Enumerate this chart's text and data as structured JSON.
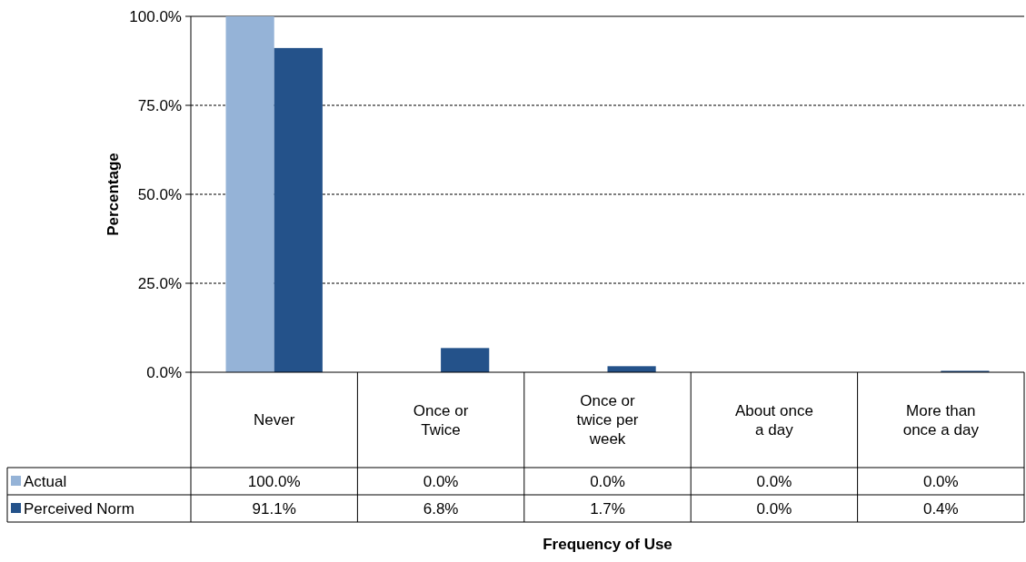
{
  "chart_data": {
    "type": "bar",
    "annotations": [
      "Frequency of Use"
    ],
    "ylabel": "Percentage",
    "categories": [
      "Never",
      "Once or Twice",
      "Once or twice per week",
      "About once a day",
      "More than once a day"
    ],
    "series": [
      {
        "name": "Actual",
        "color": "#95b3d7",
        "values": [
          100.0,
          0.0,
          0.0,
          0.0,
          0.0
        ],
        "value_labels": [
          "100.0%",
          "0.0%",
          "0.0%",
          "0.0%",
          "0.0%"
        ]
      },
      {
        "name": "Perceived Norm",
        "color": "#24528a",
        "values": [
          91.1,
          6.8,
          1.7,
          0.0,
          0.4
        ],
        "value_labels": [
          "91.1%",
          "6.8%",
          "1.7%",
          "0.0%",
          "0.4%"
        ]
      }
    ],
    "ylim": [
      0,
      100
    ],
    "yticks": [
      {
        "value": 0,
        "label": "0.0%"
      },
      {
        "value": 25,
        "label": "25.0%"
      },
      {
        "value": 50,
        "label": "50.0%"
      },
      {
        "value": 75,
        "label": "75.0%"
      },
      {
        "value": 100,
        "label": "100.0%"
      }
    ],
    "grid": "y",
    "legend": "bottom left"
  }
}
